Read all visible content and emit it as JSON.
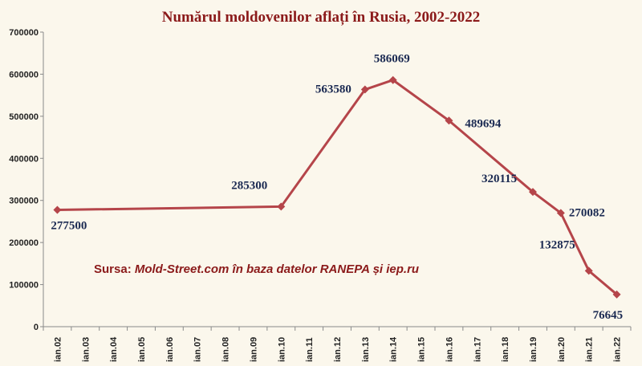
{
  "colors": {
    "line": "#b5454a",
    "title": "#8b1a1a",
    "source": "#8b1a1a",
    "labels": "#1b2a52",
    "axis": "#8a8a8a",
    "background": "#fbf7ec"
  },
  "source": {
    "prefix": "Sursa: ",
    "text": "Mold-Street.com în baza datelor RANEPA și iep.ru"
  },
  "chart_data": {
    "type": "line",
    "title": "Numărul moldovenilor aflați în Rusia, 2002-2022",
    "xlabel": "",
    "ylabel": "",
    "categories": [
      "ian.02",
      "ian.03",
      "ian.04",
      "ian.05",
      "ian.06",
      "ian.07",
      "ian.08",
      "ian.09",
      "ian.10",
      "ian.11",
      "ian.12",
      "ian.13",
      "ian.14",
      "ian.15",
      "ian.16",
      "ian.17",
      "ian.18",
      "ian.19",
      "ian.20",
      "ian.21",
      "ian.22"
    ],
    "ylim": [
      0,
      700000
    ],
    "yticks": [
      "0",
      "100000",
      "200000",
      "300000",
      "400000",
      "500000",
      "600000",
      "700000"
    ],
    "grid": false,
    "legend": "none",
    "series": [
      {
        "points": [
          {
            "x": "ian.02",
            "y": 277500,
            "label": "277500"
          },
          {
            "x": "ian.10",
            "y": 285300,
            "label": "285300"
          },
          {
            "x": "ian.13",
            "y": 563580,
            "label": "563580"
          },
          {
            "x": "ian.14",
            "y": 586069,
            "label": "586069"
          },
          {
            "x": "ian.16",
            "y": 489694,
            "label": "489694"
          },
          {
            "x": "ian.19",
            "y": 320115,
            "label": "320115"
          },
          {
            "x": "ian.20",
            "y": 270082,
            "label": "270082"
          },
          {
            "x": "ian.21",
            "y": 132875,
            "label": "132875"
          },
          {
            "x": "ian.22",
            "y": 76645,
            "label": "76645"
          }
        ]
      }
    ]
  }
}
